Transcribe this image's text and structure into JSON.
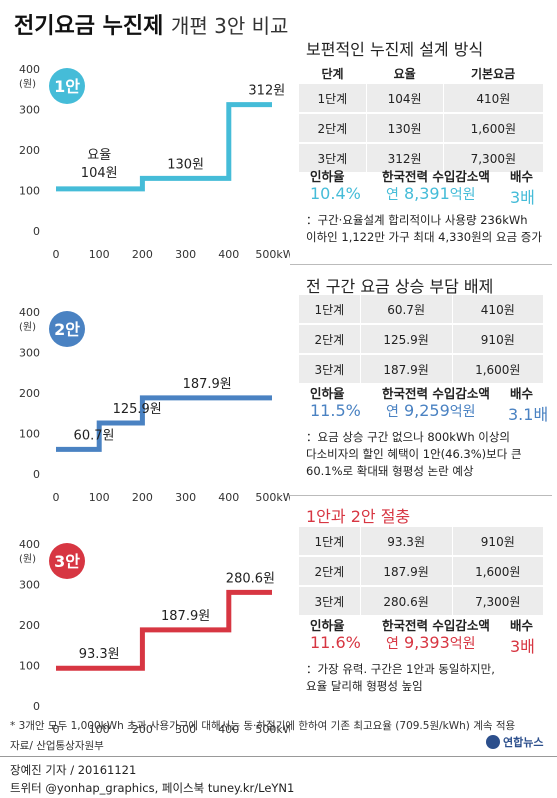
{
  "title": {
    "main": "전기요금 누진제",
    "sub": "개편 3안 비교"
  },
  "colors": {
    "plan1": "#45bcd8",
    "plan2": "#4a82c2",
    "plan3": "#d73642",
    "text_dark": "#222222"
  },
  "table_header": {
    "stage": "단계",
    "rate": "요율",
    "base": "기본요금"
  },
  "stat_labels": {
    "increase": "인하율",
    "revenue": "한국전력 수입감소액",
    "multiple": "배수"
  },
  "plans": [
    {
      "badge": "1안",
      "title": "보편적인 누진제 설계 방식",
      "rows": [
        {
          "stage": "1단계",
          "rate": "104원",
          "base": "410원"
        },
        {
          "stage": "2단계",
          "rate": "130원",
          "base": "1,600원"
        },
        {
          "stage": "3단계",
          "rate": "312원",
          "base": "7,300원"
        }
      ],
      "stats": {
        "increase": "10.4%",
        "revenue_prefix": "연",
        "revenue_amount": "8,391",
        "revenue_unit": "억원",
        "multiple": "3배"
      },
      "notes": [
        "：구간·요율설계 합리적이나 사용량 236kWh",
        "이하인 1,122만 가구 최대 4,330원의 요금 증가"
      ]
    },
    {
      "badge": "2안",
      "title": "전 구간 요금 상승 부담 배제",
      "rows": [
        {
          "stage": "1단계",
          "rate": "60.7원",
          "base": "410원"
        },
        {
          "stage": "2단계",
          "rate": "125.9원",
          "base": "910원"
        },
        {
          "stage": "3단계",
          "rate": "187.9원",
          "base": "1,600원"
        }
      ],
      "stats": {
        "increase": "11.5%",
        "revenue_prefix": "연",
        "revenue_amount": "9,259",
        "revenue_unit": "억원",
        "multiple": "3.1배"
      },
      "notes": [
        "：요금 상승 구간 없으나 800kWh 이상의",
        "다소비자의 할인 혜택이 1안(46.3%)보다 큰",
        "60.1%로 확대돼 형평성 논란 예상"
      ]
    },
    {
      "badge": "3안",
      "title": "1안과 2안 절충",
      "rows": [
        {
          "stage": "1단계",
          "rate": "93.3원",
          "base": "910원"
        },
        {
          "stage": "2단계",
          "rate": "187.9원",
          "base": "1,600원"
        },
        {
          "stage": "3단계",
          "rate": "280.6원",
          "base": "7,300원"
        }
      ],
      "stats": {
        "increase": "11.6%",
        "revenue_prefix": "연",
        "revenue_amount": "9,393",
        "revenue_unit": "억원",
        "multiple": "3배"
      },
      "notes": [
        "：가장 유력. 구간은 1안과 동일하지만,",
        "요율 달리해 형평성 높임"
      ]
    }
  ],
  "chart_data": [
    {
      "type": "line",
      "step": true,
      "color": "#45bcd8",
      "ylabel": "(원)",
      "x": [
        0,
        100,
        200,
        300,
        400,
        500
      ],
      "xtick_labels": [
        "0",
        "100",
        "200",
        "300",
        "400",
        "500kWh"
      ],
      "y_ticks": [
        0,
        100,
        200,
        300,
        400
      ],
      "ylim": [
        0,
        400
      ],
      "xlim": [
        0,
        500
      ],
      "steps": [
        {
          "x0": 0,
          "x1": 200,
          "y": 104
        },
        {
          "x0": 200,
          "x1": 400,
          "y": 130
        },
        {
          "x0": 400,
          "x1": 500,
          "y": 312
        }
      ],
      "labels": [
        "요율",
        "104원",
        "130원",
        "312원"
      ],
      "grid": false
    },
    {
      "type": "line",
      "step": true,
      "color": "#4a82c2",
      "ylabel": "(원)",
      "x": [
        0,
        100,
        200,
        300,
        400,
        500
      ],
      "xtick_labels": [
        "0",
        "100",
        "200",
        "300",
        "400",
        "500kWh"
      ],
      "y_ticks": [
        0,
        100,
        200,
        300,
        400
      ],
      "ylim": [
        0,
        400
      ],
      "xlim": [
        0,
        500
      ],
      "steps": [
        {
          "x0": 0,
          "x1": 100,
          "y": 60.7
        },
        {
          "x0": 100,
          "x1": 200,
          "y": 125.9
        },
        {
          "x0": 200,
          "x1": 500,
          "y": 187.9
        }
      ],
      "labels": [
        "60.7원",
        "125.9원",
        "187.9원"
      ],
      "grid": false
    },
    {
      "type": "line",
      "step": true,
      "color": "#d73642",
      "ylabel": "(원)",
      "x": [
        0,
        100,
        200,
        300,
        400,
        500
      ],
      "xtick_labels": [
        "0",
        "100",
        "200",
        "300",
        "400",
        "500kWh"
      ],
      "y_ticks": [
        0,
        100,
        200,
        300,
        400
      ],
      "ylim": [
        0,
        400
      ],
      "xlim": [
        0,
        500
      ],
      "steps": [
        {
          "x0": 0,
          "x1": 200,
          "y": 93.3
        },
        {
          "x0": 200,
          "x1": 400,
          "y": 187.9
        },
        {
          "x0": 400,
          "x1": 500,
          "y": 280.6
        }
      ],
      "labels": [
        "93.3원",
        "187.9원",
        "280.6원"
      ],
      "grid": false
    }
  ],
  "footnote": "* 3개안 모두 1,000kWh 초과 사용가구에 대해서는 동·하절기에 한하여 기존 최고요율 (709.5원/kWh) 계속 적용",
  "source": "자료/ 산업통상자원부",
  "brand": "연합뉴스",
  "reporter": "장예진 기자 / 20161121",
  "social": "트위터 @yonhap_graphics, 페이스북 tuney.kr/LeYN1"
}
